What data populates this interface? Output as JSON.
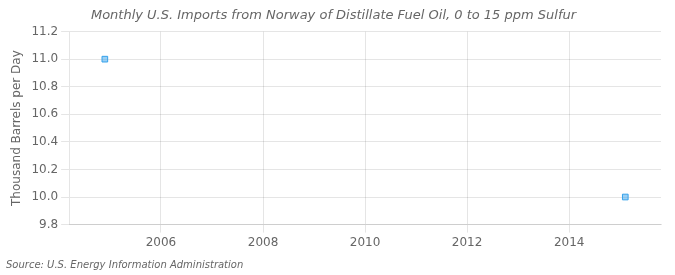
{
  "chart_data": {
    "type": "scatter",
    "title": "Monthly U.S. Imports from Norway of Distillate Fuel Oil, 0 to 15 ppm Sulfur",
    "y_label": "Thousand Barrels per Day",
    "annotation": "Source: U.S. Energy Information Administration",
    "x": [
      2004.9,
      2015.1
    ],
    "values": [
      11.0,
      10.0
    ],
    "marker": "square",
    "xlim": [
      2004.2,
      2015.8
    ],
    "xticks": [
      2006,
      2008,
      2010,
      2012,
      2014
    ],
    "ylim": [
      9.8,
      11.2
    ],
    "yticks": [
      9.8,
      {
        "value": 10.0,
        "label": "10.0"
      },
      10.2,
      10.4,
      10.6,
      10.8,
      {
        "value": 11.0,
        "label": "11.0"
      },
      11.2
    ],
    "grid": true
  }
}
